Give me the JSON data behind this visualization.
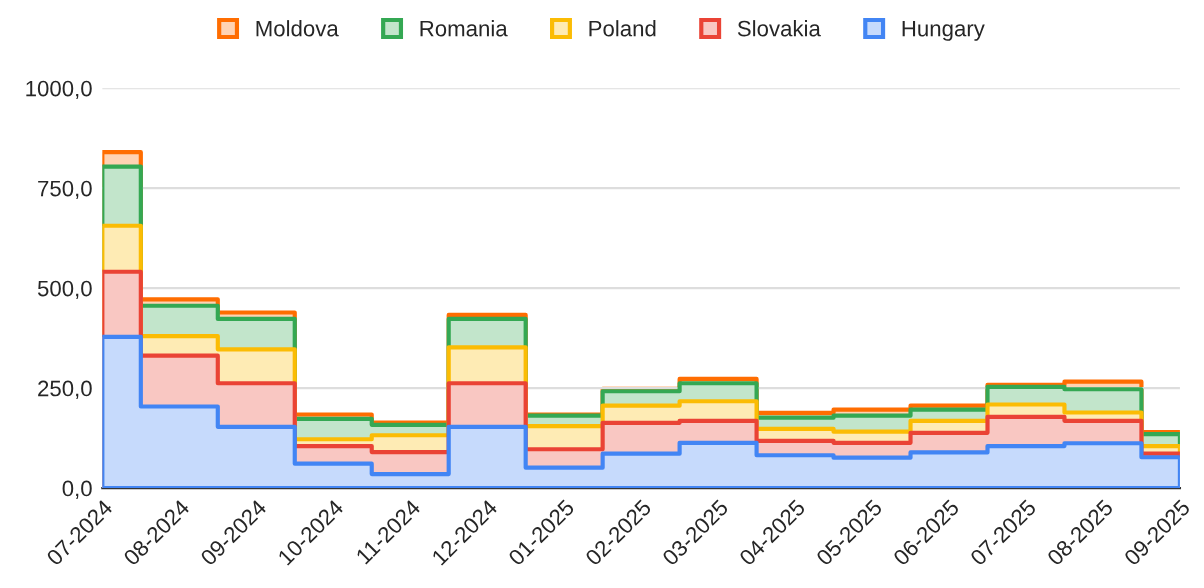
{
  "chart_data": {
    "type": "area",
    "stacked": true,
    "line_style": "solid",
    "categories": [
      "07-2024",
      "08-2024",
      "09-2024",
      "10-2024",
      "11-2024",
      "12-2024",
      "01-2025",
      "02-2025",
      "03-2025",
      "04-2025",
      "05-2025",
      "06-2025",
      "07-2025",
      "08-2025",
      "09-2025"
    ],
    "series": [
      {
        "name": "Hungary",
        "color": "#4285f4",
        "values": [
          378,
          204,
          153,
          61,
          35,
          153,
          51,
          86,
          113,
          82,
          76,
          89,
          105,
          112,
          77
        ]
      },
      {
        "name": "Slovakia",
        "color": "#ea4335",
        "values": [
          163,
          127,
          109,
          44,
          55,
          109,
          46,
          77,
          55,
          36,
          37,
          49,
          73,
          56,
          9
        ]
      },
      {
        "name": "Poland",
        "color": "#fbbc04",
        "values": [
          115,
          49,
          85,
          17,
          42,
          90,
          58,
          43,
          49,
          30,
          28,
          30,
          31,
          21,
          19
        ]
      },
      {
        "name": "Romania",
        "color": "#34a853",
        "values": [
          148,
          76,
          76,
          51,
          26,
          71,
          26,
          36,
          45,
          28,
          40,
          28,
          44,
          58,
          30
        ]
      },
      {
        "name": "Moldova",
        "color": "#ff6d01",
        "values": [
          36,
          16,
          16,
          11,
          6,
          10,
          3,
          6,
          11,
          12,
          15,
          10,
          5,
          19,
          5
        ]
      }
    ],
    "ylim": [
      0,
      1000
    ],
    "yticks": [
      {
        "value": 0,
        "label": "0,0"
      },
      {
        "value": 250,
        "label": "250,0"
      },
      {
        "value": 500,
        "label": "500,0"
      },
      {
        "value": 750,
        "label": "750,0"
      },
      {
        "value": 1000,
        "label": "1000,0"
      }
    ],
    "grid": "y",
    "legend": "top"
  }
}
